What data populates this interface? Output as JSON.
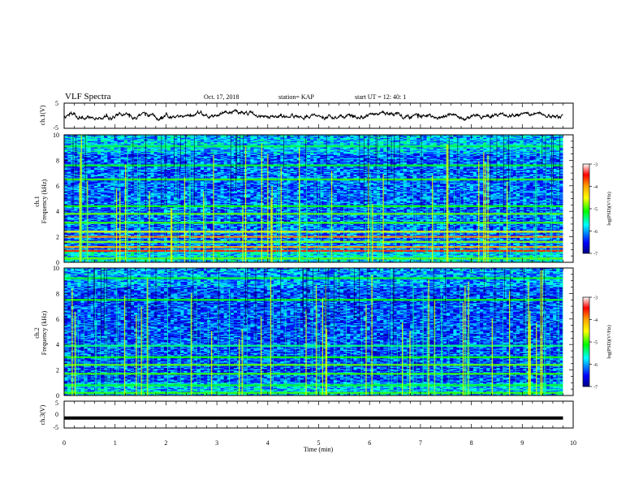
{
  "header": {
    "title": "VLF Spectra",
    "date": "Oct. 17, 2018",
    "station": "station= KAP",
    "start_time": "start  UT =   12: 40: 1"
  },
  "colorbar": {
    "label": "log(PSD)(V²/Hz)",
    "ticks": [
      "-3",
      "-4",
      "-5",
      "-6",
      "-7"
    ],
    "colors": [
      "#ffffff",
      "#ff0000",
      "#ffa500",
      "#ffff00",
      "#00ff00",
      "#00ffff",
      "#0000ff",
      "#000080"
    ]
  },
  "chart_data": [
    {
      "type": "line",
      "name": "ch1-waveform",
      "ylabel": "ch.1(V)",
      "ylim": [
        -5,
        5
      ],
      "yticks": [
        "5",
        "-5"
      ],
      "xlim": [
        0,
        10
      ],
      "x_extent_min": 9.8,
      "baseline_v": 0,
      "amplitude_v": 1.8,
      "grid": false
    },
    {
      "type": "heatmap",
      "name": "ch1-spectrogram",
      "ylabel_line1": "ch.1",
      "ylabel_line2": "Frequency (kHz)",
      "ylim": [
        0,
        10
      ],
      "yticks": [
        "0",
        "2",
        "4",
        "6",
        "8",
        "10"
      ],
      "xlim": [
        0,
        10
      ],
      "x_extent_min": 9.8,
      "background_log_psd": -6.2,
      "bands": [
        {
          "f_khz": 0.3,
          "log_psd": -4.9
        },
        {
          "f_khz": 0.9,
          "log_psd": -3.6
        },
        {
          "f_khz": 1.2,
          "log_psd": -4.0
        },
        {
          "f_khz": 1.6,
          "log_psd": -4.8
        },
        {
          "f_khz": 2.0,
          "log_psd": -3.9
        },
        {
          "f_khz": 2.4,
          "log_psd": -4.6
        },
        {
          "f_khz": 3.1,
          "log_psd": -5.0
        },
        {
          "f_khz": 3.8,
          "log_psd": -4.9
        },
        {
          "f_khz": 4.4,
          "log_psd": -5.1
        },
        {
          "f_khz": 6.5,
          "log_psd": -5.0
        },
        {
          "f_khz": 7.6,
          "log_psd": -5.2
        },
        {
          "f_khz": 9.1,
          "log_psd": -5.3
        }
      ],
      "impulse_log_psd": -5.0
    },
    {
      "type": "heatmap",
      "name": "ch2-spectrogram",
      "ylabel_line1": "ch.2",
      "ylabel_line2": "Frequency (kHz)",
      "ylim": [
        0,
        10
      ],
      "yticks": [
        "0",
        "2",
        "4",
        "6",
        "8",
        "10"
      ],
      "xlim": [
        0,
        10
      ],
      "x_extent_min": 9.8,
      "background_log_psd": -6.3,
      "bands": [
        {
          "f_khz": 0.2,
          "log_psd": -5.0
        },
        {
          "f_khz": 0.8,
          "log_psd": -5.2
        },
        {
          "f_khz": 1.7,
          "log_psd": -5.0
        },
        {
          "f_khz": 2.4,
          "log_psd": -4.9
        },
        {
          "f_khz": 3.0,
          "log_psd": -5.1
        },
        {
          "f_khz": 3.9,
          "log_psd": -5.4
        },
        {
          "f_khz": 7.5,
          "log_psd": -5.1
        },
        {
          "f_khz": 9.2,
          "log_psd": -5.2
        }
      ],
      "impulse_log_psd": -5.0
    },
    {
      "type": "line",
      "name": "ch3-waveform",
      "ylabel": "ch.3(V)",
      "ylim": [
        -5,
        5
      ],
      "yticks": [
        "5",
        "0",
        "-5"
      ],
      "xlim": [
        0,
        10
      ],
      "x_extent_min": 9.8,
      "constant_v": -1.3,
      "grid": false
    }
  ],
  "xaxis": {
    "label": "Time  (min)",
    "ticks": [
      "0",
      "1",
      "2",
      "3",
      "4",
      "5",
      "6",
      "7",
      "8",
      "9",
      "10"
    ]
  }
}
